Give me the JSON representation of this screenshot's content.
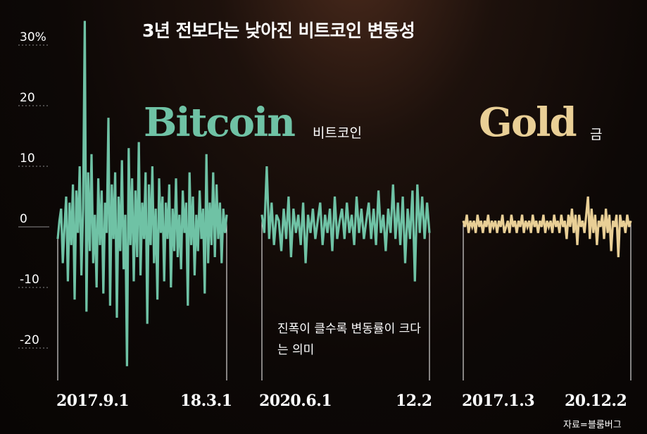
{
  "title": "3년 전보다는 낮아진 비트코인 변동성",
  "source": "자료=블룸버그",
  "note": "진폭이 클수록 변동률이 크다는 의미",
  "colors": {
    "bitcoin": "#6fc2a5",
    "gold": "#e9cf96",
    "gridline": "#8a8a8a",
    "axis_text": "#ffffff"
  },
  "chart_data": {
    "type": "line",
    "y_ticks": [
      {
        "value": 30,
        "label": "30%"
      },
      {
        "value": 20,
        "label": "20"
      },
      {
        "value": 10,
        "label": "10"
      },
      {
        "value": 0,
        "label": "0"
      },
      {
        "value": -10,
        "label": "-10"
      },
      {
        "value": -20,
        "label": "-20"
      }
    ],
    "ylim": [
      -25,
      34
    ],
    "panels": [
      {
        "name": "Bitcoin",
        "sublabel": "비트코인",
        "x_start": "2017.9.1",
        "x_end": "18.3.1",
        "series_color": "bitcoin",
        "values": [
          -2,
          1,
          3,
          -6,
          0,
          5,
          -9,
          4,
          -3,
          7,
          -12,
          6,
          -1,
          10,
          -8,
          3,
          34,
          -14,
          9,
          -4,
          12,
          -6,
          2,
          -10,
          8,
          -3,
          6,
          -11,
          4,
          -1,
          18,
          -13,
          7,
          -2,
          9,
          -15,
          5,
          -4,
          11,
          -7,
          2,
          -23,
          13,
          -3,
          8,
          -9,
          6,
          -5,
          14,
          -8,
          4,
          -2,
          9,
          -16,
          7,
          -3,
          10,
          -6,
          3,
          -12,
          8,
          -1,
          5,
          -9,
          4,
          -2,
          7,
          -10,
          3,
          -4,
          8,
          -5,
          2,
          -7,
          6,
          -1,
          4,
          -13,
          9,
          -3,
          5,
          -8,
          2,
          -4,
          6,
          -2,
          3,
          -11,
          12,
          -6,
          4,
          -3,
          9,
          -5,
          7,
          -2,
          4,
          -6,
          3,
          -1,
          2
        ]
      },
      {
        "name": "Bitcoin",
        "sublabel": "",
        "x_start": "2020.6.1",
        "x_end": "12.2",
        "series_color": "bitcoin",
        "values": [
          2,
          -1,
          10,
          -2,
          4,
          -3,
          2,
          1,
          -4,
          3,
          -2,
          5,
          -5,
          3,
          -1,
          2,
          -3,
          4,
          -6,
          2,
          -1,
          3,
          -2,
          1,
          4,
          -3,
          2,
          -1,
          3,
          -4,
          5,
          -2,
          1,
          3,
          -2,
          4,
          -1,
          2,
          -3,
          5,
          -1,
          3,
          -2,
          1,
          4,
          -2,
          3,
          -3,
          6,
          -1,
          2,
          -4,
          3,
          -1,
          7,
          -2,
          4,
          -3,
          5,
          -6,
          3,
          -2,
          6,
          -9,
          7,
          -1,
          5,
          -2,
          4,
          -1
        ]
      },
      {
        "name": "Gold",
        "sublabel": "금",
        "x_start": "2017.1.3",
        "x_end": "20.12.2",
        "series_color": "gold",
        "values": [
          1,
          0,
          2,
          -1,
          1,
          0,
          1,
          -1,
          2,
          0,
          1,
          -1,
          1,
          0,
          2,
          -1,
          1,
          0,
          1,
          -1,
          1,
          0,
          2,
          -1,
          0,
          1,
          -1,
          2,
          0,
          1,
          -1,
          1,
          0,
          2,
          -1,
          1,
          0,
          1,
          -1,
          2,
          0,
          1,
          -1,
          1,
          0,
          2,
          -1,
          1,
          0,
          1,
          -1,
          2,
          0,
          1,
          -1,
          2,
          0,
          1,
          -2,
          2,
          0,
          3,
          -1,
          2,
          -3,
          2,
          0,
          1,
          -1,
          2,
          5,
          -2,
          3,
          -1,
          2,
          -3,
          1,
          0,
          2,
          -2,
          3,
          -1,
          2,
          -4,
          1,
          0,
          2,
          -5,
          2,
          0,
          1,
          -1,
          2,
          0,
          1
        ]
      }
    ]
  }
}
